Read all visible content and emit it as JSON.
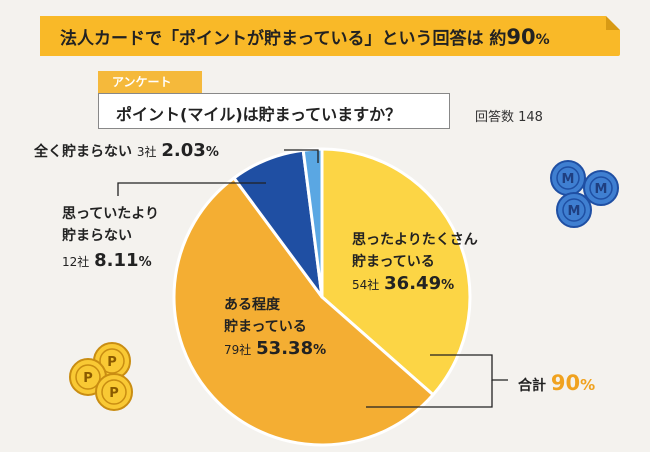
{
  "title": {
    "text": "法人カードで「ポイントが貯まっている」という回答は 約",
    "value": "90",
    "unit": "%"
  },
  "survey_tag": "アンケート",
  "question": "ポイント(マイル)は貯まっていますか？",
  "respondents": "回答数 148",
  "total": {
    "label": "合計",
    "value": "90",
    "unit": "%"
  },
  "labels": [
    {
      "line1": "思ったよりたくさん",
      "line2": "貯まっている",
      "count": "54社",
      "pct": "36.49",
      "unit": "%"
    },
    {
      "line1": "ある程度",
      "line2": "貯まっている",
      "count": "79社",
      "pct": "53.38",
      "unit": "%"
    },
    {
      "line1": "思っていたより",
      "line2": "貯まらない",
      "count": "12社",
      "pct": "8.11",
      "unit": "%"
    },
    {
      "line1": "全く貯まらない",
      "count": "3社",
      "pct": "2.03",
      "unit": "%"
    }
  ],
  "chart_data": {
    "type": "pie",
    "categories": [
      "思ったよりたくさん貯まっている",
      "ある程度貯まっている",
      "思っていたより貯まらない",
      "全く貯まらない"
    ],
    "values": [
      36.49,
      53.38,
      8.11,
      2.03
    ],
    "counts": [
      54,
      79,
      12,
      3
    ],
    "colors": [
      "#fcd545",
      "#f4ae33",
      "#1f4fa3",
      "#5aa7e3"
    ],
    "start": "12 o'clock",
    "direction": "clockwise"
  },
  "icons": {
    "coins_blue": "m-coin-icon",
    "coins_yellow": "p-coin-icon"
  }
}
